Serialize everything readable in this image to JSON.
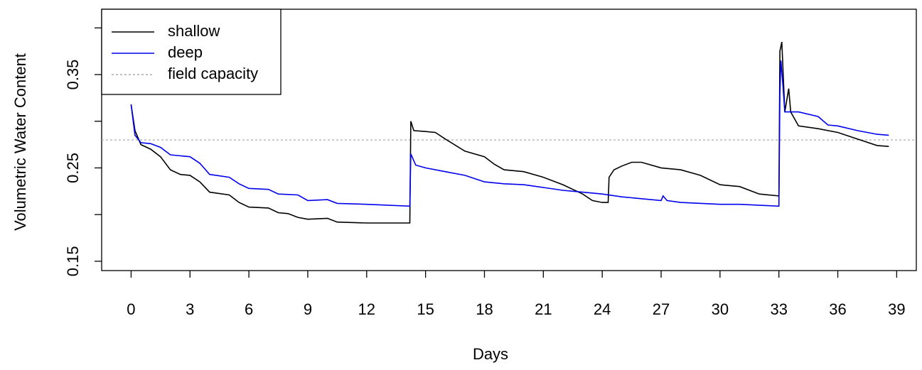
{
  "chart_data": {
    "type": "line",
    "xlabel": "Days",
    "ylabel": "Volumetric Water Content",
    "xlim": [
      -1.5,
      40
    ],
    "ylim": [
      0.14,
      0.42
    ],
    "xticks": [
      0,
      3,
      6,
      9,
      12,
      15,
      18,
      21,
      24,
      27,
      30,
      33,
      36,
      39
    ],
    "yticks": [
      0.15,
      {
        "value": 0.2,
        "label": null
      },
      0.25,
      {
        "value": 0.3,
        "label": null
      },
      0.35,
      {
        "value": 0.4,
        "label": null
      }
    ],
    "legend": "top-left",
    "series": [
      {
        "name": "shallow",
        "color": "#000000",
        "x": [
          0,
          0.2,
          0.5,
          1,
          1.5,
          2,
          2.5,
          3,
          3.5,
          4,
          5,
          5.5,
          6,
          7,
          7.5,
          8,
          8.5,
          9,
          10,
          10.5,
          12,
          13,
          14.2,
          14.25,
          14.4,
          15,
          15.5,
          16,
          17,
          18,
          18.5,
          19,
          20,
          21,
          22,
          23,
          23.5,
          24,
          24.3,
          24.35,
          24.6,
          25,
          25.5,
          26,
          27,
          28,
          29,
          30,
          31,
          32,
          33,
          33.05,
          33.15,
          33.3,
          33.5,
          33.6,
          34,
          35,
          36,
          37,
          38,
          38.6
        ],
        "values": [
          0.318,
          0.29,
          0.275,
          0.27,
          0.262,
          0.248,
          0.243,
          0.242,
          0.235,
          0.224,
          0.221,
          0.213,
          0.208,
          0.207,
          0.202,
          0.201,
          0.197,
          0.195,
          0.196,
          0.192,
          0.191,
          0.191,
          0.191,
          0.3,
          0.29,
          0.289,
          0.288,
          0.281,
          0.268,
          0.262,
          0.254,
          0.248,
          0.246,
          0.24,
          0.232,
          0.222,
          0.215,
          0.213,
          0.213,
          0.24,
          0.248,
          0.252,
          0.256,
          0.256,
          0.25,
          0.248,
          0.242,
          0.232,
          0.23,
          0.222,
          0.22,
          0.375,
          0.385,
          0.31,
          0.335,
          0.31,
          0.295,
          0.292,
          0.288,
          0.281,
          0.274,
          0.273
        ]
      },
      {
        "name": "deep",
        "color": "#0000ee",
        "x": [
          0,
          0.2,
          0.5,
          1,
          1.5,
          2,
          3,
          3.5,
          4,
          5,
          5.5,
          6,
          7,
          7.5,
          8.5,
          9,
          10,
          10.5,
          12,
          14.2,
          14.25,
          14.5,
          15,
          16,
          17,
          18,
          19,
          20,
          21,
          22,
          23,
          24,
          25,
          26,
          27,
          27.1,
          27.3,
          28,
          30,
          31,
          33,
          33.05,
          33.1,
          33.2,
          33.3,
          33.5,
          34,
          35,
          35.5,
          36,
          37,
          38,
          38.6
        ],
        "values": [
          0.318,
          0.285,
          0.277,
          0.276,
          0.272,
          0.264,
          0.262,
          0.255,
          0.243,
          0.24,
          0.233,
          0.228,
          0.227,
          0.222,
          0.221,
          0.215,
          0.216,
          0.212,
          0.211,
          0.209,
          0.265,
          0.253,
          0.25,
          0.246,
          0.242,
          0.235,
          0.233,
          0.232,
          0.229,
          0.226,
          0.224,
          0.222,
          0.219,
          0.217,
          0.215,
          0.22,
          0.215,
          0.213,
          0.211,
          0.211,
          0.209,
          0.33,
          0.365,
          0.34,
          0.31,
          0.31,
          0.31,
          0.305,
          0.296,
          0.295,
          0.29,
          0.286,
          0.285
        ]
      }
    ],
    "reference_line": {
      "name": "field capacity",
      "value": 0.28,
      "color": "#aaaaaa"
    }
  }
}
